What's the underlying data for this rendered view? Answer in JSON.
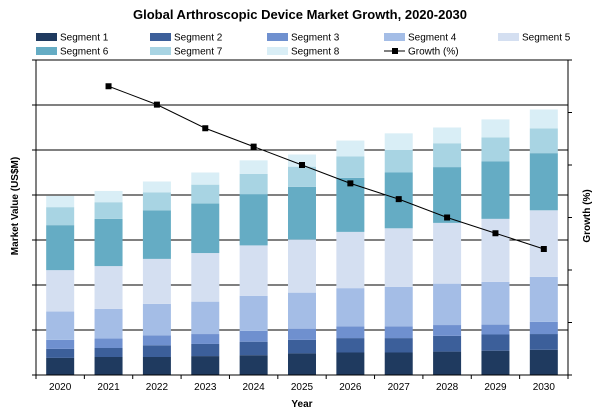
{
  "chart_data": {
    "type": "bar",
    "stacked": true,
    "title": "Global Arthroscopic Device Market Growth, 2020-2030",
    "xlabel": "Year",
    "ylabel": "Market Value (US$M)",
    "y2label": "Growth (%)",
    "categories": [
      "2020",
      "2021",
      "2022",
      "2023",
      "2024",
      "2025",
      "2026",
      "2027",
      "2028",
      "2029",
      "2030"
    ],
    "ylim": [
      0,
      7
    ],
    "y2lim": [
      0,
      12
    ],
    "grid": true,
    "legend_position": "top",
    "series": [
      {
        "name": "Segment 1",
        "color": "#1f3a5f",
        "values": [
          0.38,
          0.4,
          0.4,
          0.42,
          0.44,
          0.48,
          0.5,
          0.5,
          0.52,
          0.54,
          0.56
        ]
      },
      {
        "name": "Segment 2",
        "color": "#3c5f9a",
        "values": [
          0.2,
          0.2,
          0.26,
          0.27,
          0.3,
          0.3,
          0.32,
          0.32,
          0.35,
          0.36,
          0.35
        ]
      },
      {
        "name": "Segment 3",
        "color": "#6f90cf",
        "values": [
          0.2,
          0.21,
          0.22,
          0.22,
          0.24,
          0.25,
          0.26,
          0.26,
          0.24,
          0.22,
          0.27
        ]
      },
      {
        "name": "Segment 4",
        "color": "#a4bde6",
        "values": [
          0.63,
          0.66,
          0.7,
          0.72,
          0.78,
          0.8,
          0.85,
          0.88,
          0.92,
          0.95,
          1.0
        ]
      },
      {
        "name": "Segment 5",
        "color": "#d4dff1",
        "values": [
          0.92,
          0.95,
          1.0,
          1.08,
          1.12,
          1.18,
          1.25,
          1.3,
          1.35,
          1.4,
          1.48
        ]
      },
      {
        "name": "Segment 6",
        "color": "#65acc4",
        "values": [
          1.0,
          1.05,
          1.08,
          1.1,
          1.14,
          1.17,
          1.2,
          1.24,
          1.24,
          1.28,
          1.27
        ]
      },
      {
        "name": "Segment 7",
        "color": "#a8d4e3",
        "values": [
          0.4,
          0.37,
          0.4,
          0.42,
          0.45,
          0.45,
          0.48,
          0.5,
          0.53,
          0.53,
          0.55
        ]
      },
      {
        "name": "Segment 8",
        "color": "#d9eef6",
        "values": [
          0.25,
          0.25,
          0.24,
          0.27,
          0.3,
          0.27,
          0.35,
          0.37,
          0.35,
          0.4,
          0.42
        ]
      }
    ],
    "growth": {
      "name": "Growth (%)",
      "color": "#000000",
      "x": [
        "2021",
        "2022",
        "2023",
        "2024",
        "2025",
        "2026",
        "2027",
        "2028",
        "2029",
        "2030"
      ],
      "values": [
        11.0,
        10.3,
        9.4,
        8.7,
        8.0,
        7.3,
        6.7,
        6.0,
        5.4,
        4.8
      ]
    }
  }
}
